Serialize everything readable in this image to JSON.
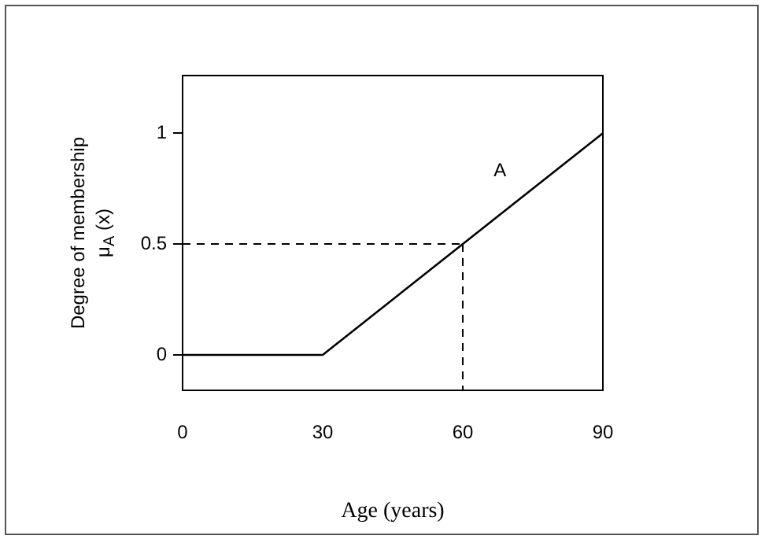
{
  "chart_data": {
    "type": "line",
    "xlabel": "Age (years)",
    "ylabel": "Degree of membership\nμ$_{A}$ (x)",
    "x": [
      0,
      30,
      90
    ],
    "series": [
      {
        "name": "A",
        "color": "#000000",
        "values": [
          0,
          0,
          1
        ]
      }
    ],
    "xlim": [
      0,
      90
    ],
    "xticks": [
      0,
      30,
      60,
      90
    ],
    "ylim": [
      -0.16,
      1.26
    ],
    "yticks": [
      0,
      0.5,
      1
    ],
    "ref_lines": [
      {
        "axis": "y",
        "value": 0.5,
        "line_style": "dashed",
        "color": "#000000"
      },
      {
        "axis": "x",
        "value": 60,
        "line_style": "dashed",
        "color": "#000000"
      }
    ],
    "grid": false,
    "legend": false,
    "marker": "none",
    "line_style": "solid"
  }
}
